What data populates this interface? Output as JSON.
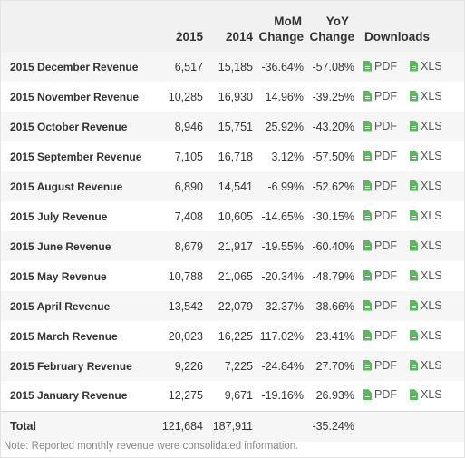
{
  "table": {
    "headers": {
      "col_2015": "2015",
      "col_2014": "2014",
      "mom_line1": "MoM",
      "mom_line2": "Change",
      "yoy_line1": "YoY",
      "yoy_line2": "Change",
      "downloads": "Downloads"
    },
    "download_labels": {
      "pdf": "PDF",
      "xls": "XLS"
    },
    "rows": [
      {
        "name": "2015 December Revenue",
        "v2015": "6,517",
        "v2014": "15,185",
        "mom": "-36.64%",
        "yoy": "-57.08%"
      },
      {
        "name": "2015 November Revenue",
        "v2015": "10,285",
        "v2014": "16,930",
        "mom": "14.96%",
        "yoy": "-39.25%"
      },
      {
        "name": "2015 October Revenue",
        "v2015": "8,946",
        "v2014": "15,751",
        "mom": "25.92%",
        "yoy": "-43.20%"
      },
      {
        "name": "2015 September Revenue",
        "v2015": "7,105",
        "v2014": "16,718",
        "mom": "3.12%",
        "yoy": "-57.50%"
      },
      {
        "name": "2015 August Revenue",
        "v2015": "6,890",
        "v2014": "14,541",
        "mom": "-6.99%",
        "yoy": "-52.62%"
      },
      {
        "name": "2015 July Revenue",
        "v2015": "7,408",
        "v2014": "10,605",
        "mom": "-14.65%",
        "yoy": "-30.15%"
      },
      {
        "name": "2015 June Revenue",
        "v2015": "8,679",
        "v2014": "21,917",
        "mom": "-19.55%",
        "yoy": "-60.40%"
      },
      {
        "name": "2015 May Revenue",
        "v2015": "10,788",
        "v2014": "21,065",
        "mom": "-20.34%",
        "yoy": "-48.79%"
      },
      {
        "name": "2015 April Revenue",
        "v2015": "13,542",
        "v2014": "22,079",
        "mom": "-32.37%",
        "yoy": "-38.66%"
      },
      {
        "name": "2015 March Revenue",
        "v2015": "20,023",
        "v2014": "16,225",
        "mom": "117.02%",
        "yoy": "23.41%"
      },
      {
        "name": "2015 February Revenue",
        "v2015": "9,226",
        "v2014": "7,225",
        "mom": "-24.84%",
        "yoy": "27.70%"
      },
      {
        "name": "2015 January Revenue",
        "v2015": "12,275",
        "v2014": "9,671",
        "mom": "-19.16%",
        "yoy": "26.93%"
      }
    ],
    "total": {
      "label": "Total",
      "v2015": "121,684",
      "v2014": "187,911",
      "yoy": "-35.24%"
    }
  },
  "note": "Note: Reported monthly revenue were consolidated information.",
  "colors": {
    "icon_green": "#5cb85c",
    "header_bg": "#f1f1f1",
    "stripe_bg": "#f6f6f6"
  },
  "icons": {
    "download_file": "document-icon"
  }
}
